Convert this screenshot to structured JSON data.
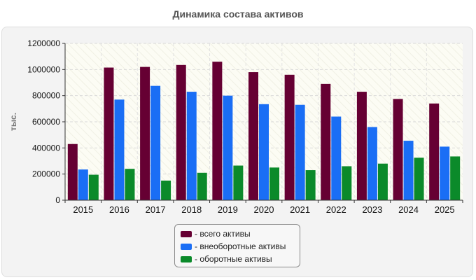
{
  "chart_data": {
    "type": "bar",
    "title": "Динамика состава активов",
    "ylabel": "тыс.",
    "xlabel": "",
    "categories": [
      "2015",
      "2016",
      "2017",
      "2018",
      "2019",
      "2020",
      "2021",
      "2022",
      "2023",
      "2024",
      "2025"
    ],
    "ylim": [
      0,
      1200000
    ],
    "yticks": [
      0,
      200000,
      400000,
      600000,
      800000,
      1000000,
      1200000
    ],
    "grid": true,
    "legend_position": "bottom",
    "series": [
      {
        "name": "- всего активы",
        "color": "#660033",
        "values": [
          430000,
          1015000,
          1020000,
          1035000,
          1060000,
          980000,
          960000,
          890000,
          830000,
          775000,
          740000
        ]
      },
      {
        "name": "- внеоборотные активы",
        "color": "#1a6ef5",
        "values": [
          235000,
          770000,
          875000,
          830000,
          800000,
          735000,
          730000,
          640000,
          560000,
          455000,
          410000
        ]
      },
      {
        "name": "- оборотные активы",
        "color": "#0b8a2a",
        "values": [
          195000,
          240000,
          150000,
          210000,
          265000,
          250000,
          230000,
          260000,
          280000,
          325000,
          335000
        ]
      }
    ]
  }
}
